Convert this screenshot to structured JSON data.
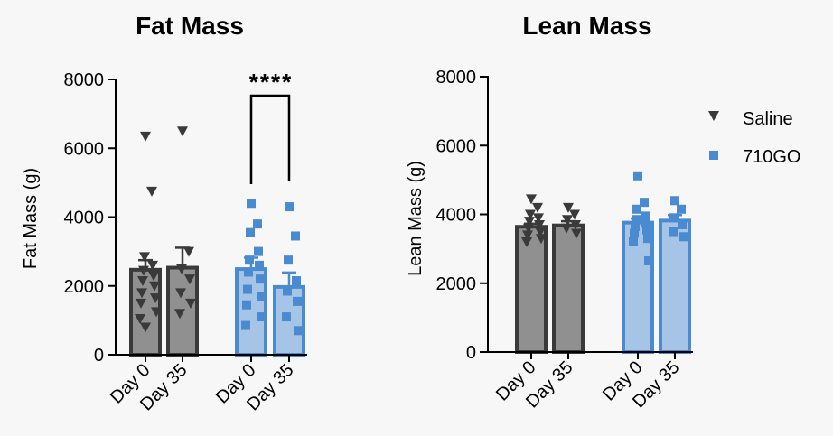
{
  "chart_data": [
    {
      "type": "bar",
      "title": "Fat Mass",
      "ylabel": "Fat Mass (g)",
      "ylim": [
        0,
        8000
      ],
      "yticks": [
        "0",
        "2000",
        "4000",
        "6000",
        "8000"
      ],
      "categories": [
        "Day 0",
        "Day 35",
        "Day 0",
        "Day 35"
      ],
      "groups": [
        "Saline",
        "Saline",
        "710GO",
        "710GO"
      ],
      "values": [
        2470,
        2530,
        2490,
        1970
      ],
      "errors": [
        280,
        580,
        330,
        420
      ],
      "points": [
        [
          6350,
          4750,
          2850,
          2600,
          2450,
          2300,
          2150,
          2000,
          1800,
          1650,
          1500,
          1250,
          1050,
          800
        ],
        [
          6500,
          3000,
          2500,
          2200,
          1800,
          1500,
          1200
        ],
        [
          4400,
          3800,
          3550,
          3000,
          2750,
          2600,
          2400,
          2200,
          1900,
          1700,
          1450,
          1100,
          850
        ],
        [
          4300,
          3450,
          2750,
          2150,
          1850,
          1550,
          1100,
          700
        ]
      ],
      "significance": {
        "label": "****",
        "between": [
          2,
          3
        ]
      }
    },
    {
      "type": "bar",
      "title": "Lean Mass",
      "ylabel": "Lean Mass (g)",
      "ylim": [
        0,
        8000
      ],
      "yticks": [
        "0",
        "2000",
        "4000",
        "6000",
        "8000"
      ],
      "categories": [
        "Day 0",
        "Day 35",
        "Day 0",
        "Day 35"
      ],
      "groups": [
        "Saline",
        "Saline",
        "710GO",
        "710GO"
      ],
      "values": [
        3640,
        3680,
        3760,
        3820
      ],
      "errors": [
        90,
        120,
        120,
        160
      ],
      "points": [
        [
          4450,
          4200,
          4000,
          3900,
          3800,
          3700,
          3600,
          3500,
          3400,
          3300,
          3200
        ],
        [
          4200,
          4000,
          3850,
          3700,
          3600,
          3450
        ],
        [
          5120,
          4350,
          4150,
          3950,
          3850,
          3750,
          3650,
          3550,
          3450,
          3300,
          3200,
          2650
        ],
        [
          4400,
          4150,
          3900,
          3700,
          3500,
          3350
        ]
      ],
      "legend": {
        "position": "top-right",
        "entries": [
          {
            "label": "Saline",
            "marker": "triangle-down",
            "color": "#3a3a3a"
          },
          {
            "label": "710GO",
            "marker": "square",
            "color": "#4a8ad0"
          }
        ]
      }
    }
  ],
  "colors": {
    "saline_fill": "#909090",
    "saline_edge": "#3a3a3a",
    "go_fill": "#a6c4e6",
    "go_edge": "#4a8ad0",
    "go_marker": "#4a8ad0"
  }
}
